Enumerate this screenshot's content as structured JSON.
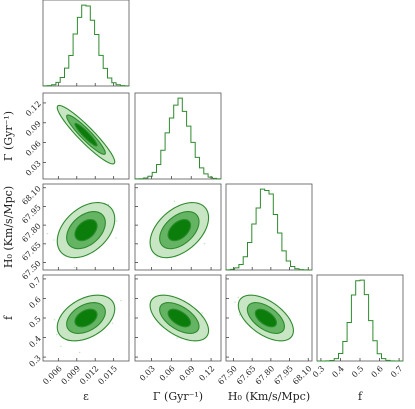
{
  "chart_data": {
    "type": "corner",
    "parameters": [
      {
        "key": "epsilon",
        "label": "ε",
        "range": [
          0.0035,
          0.0175
        ],
        "ticks": [
          "0.006",
          "0.009",
          "0.012",
          "0.015"
        ],
        "tick_values": [
          0.006,
          0.009,
          0.012,
          0.015
        ],
        "mean": 0.0105,
        "sigma": 0.0018
      },
      {
        "key": "gamma",
        "label": "Γ (Gyr⁻¹)",
        "range": [
          0.005,
          0.135
        ],
        "ticks": [
          "0.03",
          "0.06",
          "0.09",
          "0.12"
        ],
        "tick_values": [
          0.03,
          0.06,
          0.09,
          0.12
        ],
        "mean": 0.072,
        "sigma": 0.017
      },
      {
        "key": "h0",
        "label": "H₀ (Km/s/Mpc)",
        "range": [
          67.44,
          68.13
        ],
        "ticks": [
          "67.50",
          "67.65",
          "67.80",
          "67.95",
          "68.10"
        ],
        "tick_values": [
          67.5,
          67.65,
          67.8,
          67.95,
          68.1
        ],
        "mean": 67.76,
        "sigma": 0.085
      },
      {
        "key": "f",
        "label": "f",
        "range": [
          0.28,
          0.72
        ],
        "ticks": [
          "0.3",
          "0.4",
          "0.5",
          "0.6",
          "0.7"
        ],
        "tick_values": [
          0.3,
          0.4,
          0.5,
          0.6,
          0.7
        ],
        "mean": 0.5,
        "sigma": 0.045
      }
    ],
    "correlations": {
      "epsilon_gamma": -0.93,
      "epsilon_h0": 0.4,
      "gamma_h0": 0.45,
      "epsilon_f": 0.4,
      "gamma_f": -0.55,
      "h0_f": -0.55
    },
    "contour_levels_sigma": [
      1,
      2,
      3
    ],
    "colors": {
      "line": "#2e8b2e",
      "fill_inner": "#0b7d0b",
      "fill_mid": "#64b464",
      "fill_outer": "#c9e6c4",
      "samples": "#8fd18f"
    }
  }
}
